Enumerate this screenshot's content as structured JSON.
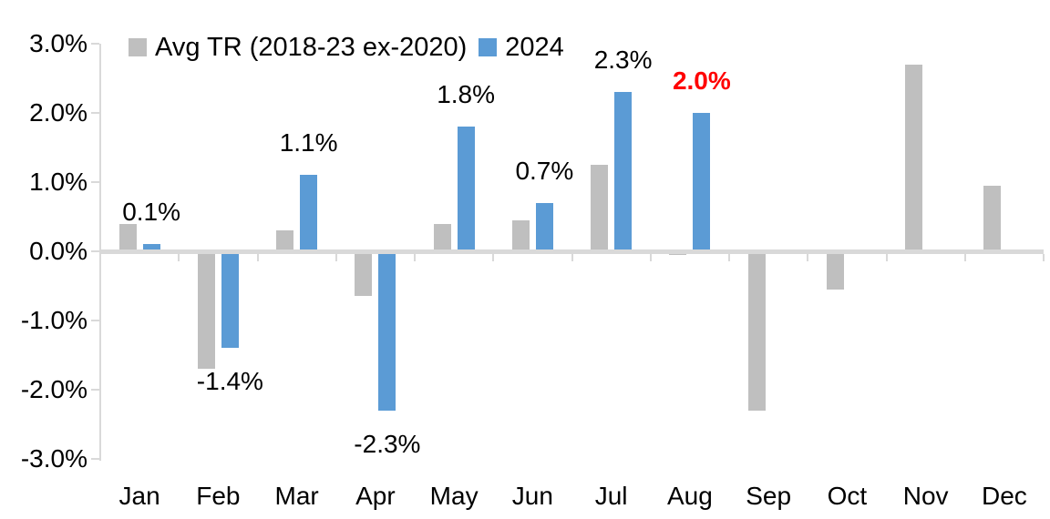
{
  "chart_data": {
    "type": "bar",
    "title": "",
    "categories": [
      "Jan",
      "Feb",
      "Mar",
      "Apr",
      "May",
      "Jun",
      "Jul",
      "Aug",
      "Sep",
      "Oct",
      "Nov",
      "Dec"
    ],
    "series": [
      {
        "name": "Avg TR (2018-23 ex-2020)",
        "color": "#bfbfbf",
        "values": [
          0.4,
          -1.7,
          0.3,
          -0.65,
          0.4,
          0.45,
          1.25,
          -0.05,
          -2.3,
          -0.55,
          2.7,
          0.95
        ]
      },
      {
        "name": "2024",
        "color": "#5b9bd5",
        "values": [
          0.1,
          -1.4,
          1.1,
          -2.3,
          1.8,
          0.7,
          2.3,
          2.0,
          null,
          null,
          null,
          null
        ]
      }
    ],
    "data_labels": [
      {
        "month": "Jan",
        "index": 0,
        "text": "0.1%",
        "color": "#000000",
        "bold": false
      },
      {
        "month": "Feb",
        "index": 1,
        "text": "-1.4%",
        "color": "#000000",
        "bold": false
      },
      {
        "month": "Mar",
        "index": 2,
        "text": "1.1%",
        "color": "#000000",
        "bold": false
      },
      {
        "month": "Apr",
        "index": 3,
        "text": "-2.3%",
        "color": "#000000",
        "bold": false
      },
      {
        "month": "May",
        "index": 4,
        "text": "1.8%",
        "color": "#000000",
        "bold": false
      },
      {
        "month": "Jun",
        "index": 5,
        "text": "0.7%",
        "color": "#000000",
        "bold": false
      },
      {
        "month": "Jul",
        "index": 6,
        "text": "2.3%",
        "color": "#000000",
        "bold": false
      },
      {
        "month": "Aug",
        "index": 7,
        "text": "2.0%",
        "color": "#ff0000",
        "bold": true
      }
    ],
    "y_axis": {
      "tick_labels": [
        "3.0%",
        "2.0%",
        "1.0%",
        "0.0%",
        "-1.0%",
        "-2.0%",
        "-3.0%"
      ],
      "min": -3.0,
      "max": 3.0,
      "step": 1.0,
      "unit": "%"
    },
    "legend_position": "top",
    "grid": "off",
    "colors": {
      "axis": "#d9d9d9",
      "text": "#000000",
      "highlight": "#ff0000",
      "background": "#ffffff"
    }
  }
}
